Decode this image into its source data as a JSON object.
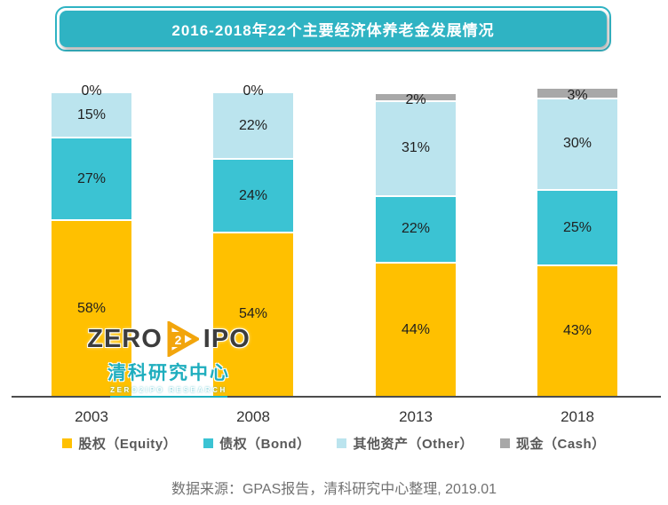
{
  "title": "2016-2018年22个主要经济体养老金发展情况",
  "chart_data": {
    "type": "bar",
    "stacked": true,
    "orientation": "vertical",
    "unit": "percent",
    "categories": [
      "2003",
      "2008",
      "2013",
      "2018"
    ],
    "series": [
      {
        "name": "股权（Equity）",
        "color": "#FFC000",
        "values": [
          58,
          54,
          44,
          43
        ]
      },
      {
        "name": "债权（Bond）",
        "color": "#3BC3D3",
        "values": [
          27,
          24,
          22,
          25
        ]
      },
      {
        "name": "其他资产（Other）",
        "color": "#BBE4EE",
        "values": [
          15,
          22,
          31,
          30
        ]
      },
      {
        "name": "现金（Cash）",
        "color": "#A8A8A8",
        "values": [
          0,
          0,
          2,
          3
        ]
      }
    ],
    "value_labels": "each segment labeled inside center as {value}%",
    "legend_position": "bottom",
    "xlabel": "",
    "ylabel": ""
  },
  "watermark": {
    "zero": "ZERO",
    "two": "2",
    "ipo": "IPO",
    "cn_name": "清科研究中心",
    "en_name": "ZERO2IPO RESEARCH"
  },
  "source_note": "数据来源：GPAS报告，清科研究中心整理, 2019.01",
  "colors": {
    "banner": "#2FB3C3",
    "equity": "#FFC000",
    "bond": "#3BC3D3",
    "other": "#BBE4EE",
    "cash": "#A8A8A8",
    "logo_teal": "#1FAEBE",
    "logo_orange": "#F2A50C",
    "axis": "#4d4d4d"
  }
}
